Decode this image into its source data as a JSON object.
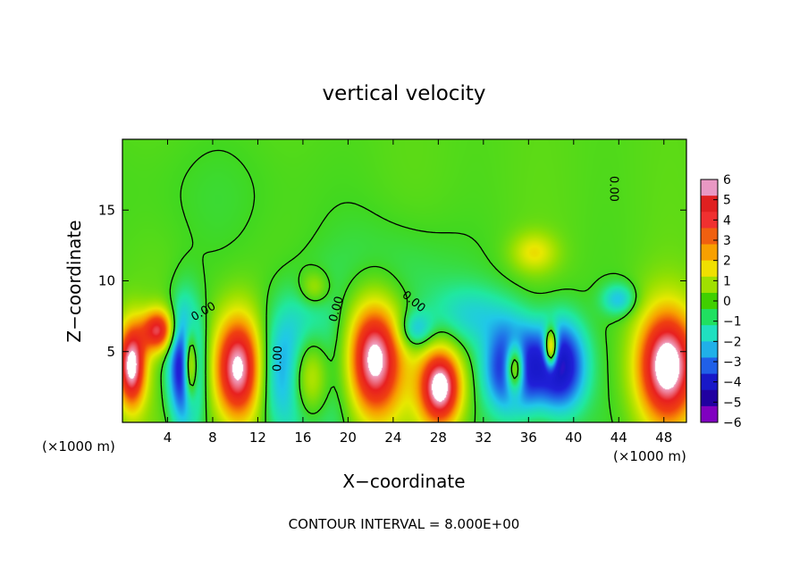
{
  "chart_data": {
    "type": "heatmap",
    "title": "vertical velocity",
    "xlabel": "X−coordinate",
    "ylabel": "Z−coordinate",
    "x_unit_left": "(×1000 m)",
    "x_unit_right": "(×1000 m)",
    "footer": "CONTOUR INTERVAL = 8.000E+00",
    "xlim": [
      0,
      50
    ],
    "ylim": [
      0,
      20
    ],
    "x_ticks": [
      4,
      8,
      12,
      16,
      20,
      24,
      28,
      32,
      36,
      40,
      44,
      48
    ],
    "y_ticks": [
      5,
      10,
      15
    ],
    "colorbar": {
      "min": -6,
      "max": 6,
      "ticks": [
        6,
        5,
        4,
        3,
        2,
        1,
        0,
        -1,
        -2,
        -3,
        -4,
        -5,
        -6
      ],
      "tick_labels": [
        "6",
        "5",
        "4",
        "3",
        "2",
        "1",
        "0",
        "−1",
        "−2",
        "−3",
        "−4",
        "−5",
        "−6"
      ],
      "colors": [
        "#e998c4",
        "#e02020",
        "#f03030",
        "#f06010",
        "#f8a000",
        "#f0e000",
        "#a0e000",
        "#40d000",
        "#20e060",
        "#20e0c0",
        "#20b0e8",
        "#2060e8",
        "#1818c8",
        "#2000a0",
        "#8000c0"
      ]
    },
    "contour_labels": [
      {
        "text": "0.00",
        "x": 7.2,
        "z": 7.8,
        "angle": -30
      },
      {
        "text": "0.00",
        "x": 13.8,
        "z": 4.5,
        "angle": -88
      },
      {
        "text": "0.00",
        "x": 19.0,
        "z": 8.0,
        "angle": -75
      },
      {
        "text": "0.00",
        "x": 25.8,
        "z": 8.5,
        "angle": 40
      },
      {
        "text": "0.00",
        "x": 43.5,
        "z": 16.5,
        "angle": 90
      }
    ],
    "features": [
      {
        "x": 1.0,
        "z": 4.0,
        "w": -0.3,
        "rx": 2.2,
        "rz": 4.2
      },
      {
        "x": 0.8,
        "z": 4.0,
        "w": 6.5,
        "rx": 1.3,
        "rz": 3.0
      },
      {
        "x": 3.2,
        "z": 6.5,
        "w": 5.0,
        "rx": 1.5,
        "rz": 1.5
      },
      {
        "x": 5.6,
        "z": 4.0,
        "w": -6.5,
        "rx": 1.4,
        "rz": 4.0
      },
      {
        "x": 6.0,
        "z": 4.0,
        "w": 6.5,
        "rx": 0.7,
        "rz": 2.6
      },
      {
        "x": 10.3,
        "z": 3.8,
        "w": 6.5,
        "rx": 2.2,
        "rz": 3.8
      },
      {
        "x": 15.8,
        "z": 3.5,
        "w": -6.0,
        "rx": 3.2,
        "rz": 4.5
      },
      {
        "x": 16.5,
        "z": 3.3,
        "w": 6.5,
        "rx": 2.0,
        "rz": 3.3
      },
      {
        "x": 22.3,
        "z": 4.5,
        "w": 6.5,
        "rx": 2.5,
        "rz": 4.2
      },
      {
        "x": 28.2,
        "z": 2.5,
        "w": 6.5,
        "rx": 1.9,
        "rz": 2.8
      },
      {
        "x": 26.0,
        "z": 6.5,
        "w": -2.2,
        "rx": 1.5,
        "rz": 1.3
      },
      {
        "x": 34.8,
        "z": 3.8,
        "w": -6.0,
        "rx": 2.4,
        "rz": 3.0
      },
      {
        "x": 34.8,
        "z": 3.8,
        "w": 6.5,
        "rx": 0.9,
        "rz": 1.8
      },
      {
        "x": 38.8,
        "z": 4.0,
        "w": -5.5,
        "rx": 2.2,
        "rz": 3.2
      },
      {
        "x": 38.0,
        "z": 5.2,
        "w": 6.5,
        "rx": 0.6,
        "rz": 1.4
      },
      {
        "x": 48.3,
        "z": 4.0,
        "w": 6.5,
        "rx": 2.7,
        "rz": 4.0
      },
      {
        "x": 44.0,
        "z": 8.7,
        "w": -2.2,
        "rx": 1.5,
        "rz": 1.1
      },
      {
        "x": 31.0,
        "z": 7.5,
        "w": -1.6,
        "rx": 4.0,
        "rz": 2.2
      },
      {
        "x": 36.5,
        "z": 12.0,
        "w": 1.8,
        "rx": 2.0,
        "rz": 1.4
      },
      {
        "x": 17.0,
        "z": 9.5,
        "w": 1.6,
        "rx": 1.3,
        "rz": 1.2
      },
      {
        "x": 24.0,
        "z": 10.0,
        "w": -0.9,
        "rx": 6.0,
        "rz": 4.0
      },
      {
        "x": 8.0,
        "z": 16.0,
        "w": -0.3,
        "rx": 10.0,
        "rz": 4.5
      }
    ]
  }
}
